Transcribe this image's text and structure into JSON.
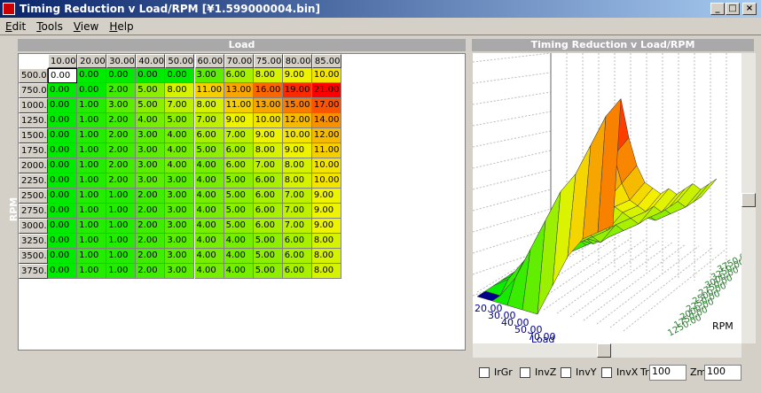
{
  "window": {
    "title": "Timing Reduction v Load/RPM [¥1.599000004.bin]"
  },
  "menu": [
    "Edit",
    "Tools",
    "View",
    "Help"
  ],
  "table": {
    "title": "Load",
    "row_axis_label": "RPM",
    "columns": [
      "10.00",
      "20.00",
      "30.00",
      "40.00",
      "50.00",
      "60.00",
      "70.00",
      "75.00",
      "80.00",
      "85.00"
    ],
    "rows": [
      {
        "label": "500.00",
        "cells": [
          "0.00",
          "0.00",
          "0.00",
          "0.00",
          "0.00",
          "3.00",
          "6.00",
          "8.00",
          "9.00",
          "10.00"
        ]
      },
      {
        "label": "750.00",
        "cells": [
          "0.00",
          "0.00",
          "2.00",
          "5.00",
          "8.00",
          "11.00",
          "13.00",
          "16.00",
          "19.00",
          "21.00"
        ]
      },
      {
        "label": "1000.00",
        "cells": [
          "0.00",
          "1.00",
          "3.00",
          "5.00",
          "7.00",
          "8.00",
          "11.00",
          "13.00",
          "15.00",
          "17.00"
        ]
      },
      {
        "label": "1250.00",
        "cells": [
          "0.00",
          "1.00",
          "2.00",
          "4.00",
          "5.00",
          "7.00",
          "9.00",
          "10.00",
          "12.00",
          "14.00"
        ]
      },
      {
        "label": "1500.00",
        "cells": [
          "0.00",
          "1.00",
          "2.00",
          "3.00",
          "4.00",
          "6.00",
          "7.00",
          "9.00",
          "10.00",
          "12.00"
        ]
      },
      {
        "label": "1750.00",
        "cells": [
          "0.00",
          "1.00",
          "2.00",
          "3.00",
          "4.00",
          "5.00",
          "6.00",
          "8.00",
          "9.00",
          "11.00"
        ]
      },
      {
        "label": "2000.00",
        "cells": [
          "0.00",
          "1.00",
          "2.00",
          "3.00",
          "4.00",
          "4.00",
          "6.00",
          "7.00",
          "8.00",
          "10.00"
        ]
      },
      {
        "label": "2250.00",
        "cells": [
          "0.00",
          "1.00",
          "2.00",
          "3.00",
          "3.00",
          "4.00",
          "5.00",
          "6.00",
          "8.00",
          "10.00"
        ]
      },
      {
        "label": "2500.00",
        "cells": [
          "0.00",
          "1.00",
          "1.00",
          "2.00",
          "3.00",
          "4.00",
          "5.00",
          "6.00",
          "7.00",
          "9.00"
        ]
      },
      {
        "label": "2750.00",
        "cells": [
          "0.00",
          "1.00",
          "1.00",
          "2.00",
          "3.00",
          "4.00",
          "5.00",
          "6.00",
          "7.00",
          "9.00"
        ]
      },
      {
        "label": "3000.00",
        "cells": [
          "0.00",
          "1.00",
          "1.00",
          "2.00",
          "3.00",
          "4.00",
          "5.00",
          "6.00",
          "7.00",
          "9.00"
        ]
      },
      {
        "label": "3250.00",
        "cells": [
          "0.00",
          "1.00",
          "1.00",
          "2.00",
          "3.00",
          "4.00",
          "4.00",
          "5.00",
          "6.00",
          "8.00"
        ]
      },
      {
        "label": "3500.00",
        "cells": [
          "0.00",
          "1.00",
          "1.00",
          "2.00",
          "3.00",
          "4.00",
          "4.00",
          "5.00",
          "6.00",
          "8.00"
        ]
      },
      {
        "label": "3750.00",
        "cells": [
          "0.00",
          "1.00",
          "1.00",
          "2.00",
          "3.00",
          "4.00",
          "4.00",
          "5.00",
          "6.00",
          "8.00"
        ]
      }
    ]
  },
  "graph": {
    "title": "Timing Reduction v Load/RPM",
    "x_axis_label": "Load",
    "y_axis_label": "RPM",
    "x_ticks": [
      "20.00",
      "30.00",
      "40.00",
      "50.00",
      "70.00"
    ],
    "y_ticks": [
      "1250.00",
      "1750.00",
      "2000.00",
      "2250.00",
      "2500.00",
      "2750.00",
      "3000.00",
      "3250.00",
      "3750.00"
    ]
  },
  "controls": {
    "checkboxes": [
      "IrGr",
      "InvZ",
      "InvY",
      "InvX"
    ],
    "tr_label": "Tr",
    "tr_value": "100",
    "zm_label": "Zm",
    "zm_value": "100"
  }
}
